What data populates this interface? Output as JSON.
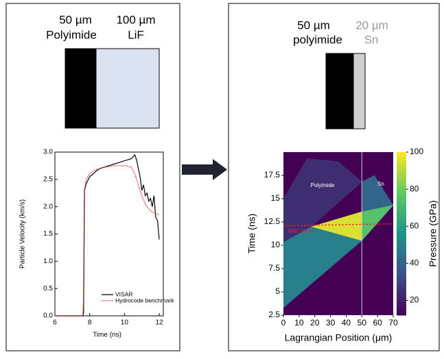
{
  "samples": [
    {
      "layers": [
        {
          "thickness": "50 µm",
          "material": "Polyimide"
        },
        {
          "thickness": "100 µm",
          "material": "LiF"
        }
      ]
    },
    {
      "layers": [
        {
          "thickness": "50 µm",
          "material": "polyimide"
        },
        {
          "thickness": "20 µm",
          "material": "Sn"
        }
      ]
    }
  ],
  "chart_data": [
    {
      "type": "line",
      "xlabel": "Time (ns)",
      "ylabel": "Particle Velocity (km/s)",
      "x": [
        6,
        7.6,
        7.65,
        7.7,
        7.8,
        8,
        8.2,
        8.4,
        8.6,
        8.8,
        9,
        9.2,
        9.4,
        9.6,
        9.8,
        10,
        10.2,
        10.4,
        10.6,
        10.7,
        10.8,
        10.9,
        11,
        11.1,
        11.2,
        11.3,
        11.4,
        11.5,
        11.6,
        11.7,
        11.8,
        11.9,
        12
      ],
      "series": [
        {
          "name": "VISAR",
          "color": "#000000",
          "style": "solid",
          "values": [
            0,
            0,
            0.05,
            2.3,
            2.42,
            2.55,
            2.6,
            2.66,
            2.7,
            2.72,
            2.74,
            2.76,
            2.78,
            2.8,
            2.82,
            2.84,
            2.86,
            2.88,
            2.95,
            2.85,
            2.7,
            2.55,
            2.3,
            2.4,
            2.2,
            2.25,
            2.1,
            2.15,
            2.0,
            2.2,
            1.8,
            1.75,
            1.4
          ]
        },
        {
          "name": "Hydrocode benchmark",
          "color": "#e0201b",
          "style": "dotted",
          "values": [
            0,
            0,
            0.3,
            2.3,
            2.5,
            2.6,
            2.65,
            2.68,
            2.7,
            2.72,
            2.73,
            2.74,
            2.75,
            2.75,
            2.75,
            2.75,
            2.74,
            2.72,
            2.6,
            2.5,
            2.4,
            2.3,
            2.2,
            2.12,
            2.05,
            2.0,
            1.96,
            1.93,
            1.9,
            1.88,
            1.87,
            1.86,
            1.85
          ]
        }
      ],
      "xlim": [
        6,
        12
      ],
      "xticks": [
        6,
        8,
        10,
        12
      ],
      "ylim": [
        0,
        3
      ],
      "yticks": [
        {
          "value": 0,
          "label": "0.0"
        },
        {
          "value": 0.5,
          "label": "0.5"
        },
        {
          "value": 1,
          "label": "1.0"
        },
        {
          "value": 1.5,
          "label": "1.5"
        },
        {
          "value": 2,
          "label": "2.0"
        },
        {
          "value": 2.5,
          "label": "2.5"
        },
        {
          "value": 3,
          "label": "3.0"
        }
      ],
      "legend": "lower right"
    },
    {
      "type": "heatmap",
      "xlabel": "Lagrangian Position (μm)",
      "ylabel": "Time (ns)",
      "colorbar_label": "Pressure (GPa)",
      "xlim": [
        0,
        70
      ],
      "xticks": [
        0,
        10,
        20,
        30,
        40,
        50,
        60,
        70
      ],
      "ylim": [
        2.5,
        20
      ],
      "yticks": [
        2.5,
        5,
        7.5,
        10,
        12.5,
        15,
        17.5
      ],
      "clim": [
        12,
        100
      ],
      "cticks": [
        20,
        40,
        60,
        80,
        100
      ],
      "regions": [
        {
          "pressure": 12,
          "points": [
            [
              0,
              2.5
            ],
            [
              70,
              2.5
            ],
            [
              70,
              20
            ],
            [
              0,
              20
            ]
          ]
        },
        {
          "pressure": 24,
          "points": [
            [
              0,
              10.3
            ],
            [
              18,
              12
            ],
            [
              50,
              16.8
            ],
            [
              35,
              19
            ],
            [
              15,
              19.3
            ],
            [
              0,
              15
            ]
          ]
        },
        {
          "pressure": 50,
          "points": [
            [
              0,
              3.3
            ],
            [
              0,
              10.3
            ],
            [
              18,
              12
            ],
            [
              50,
              10.5
            ]
          ]
        },
        {
          "pressure": 40,
          "points": [
            [
              50,
              13.6
            ],
            [
              70,
              14.3
            ],
            [
              58,
              17.5
            ],
            [
              50,
              16.8
            ]
          ]
        },
        {
          "pressure": 95,
          "points": [
            [
              18,
              12
            ],
            [
              50,
              13.6
            ],
            [
              50,
              10.5
            ]
          ]
        },
        {
          "pressure": 75,
          "points": [
            [
              50,
              10.5
            ],
            [
              50,
              13.6
            ],
            [
              70,
              14.3
            ]
          ]
        }
      ],
      "layer_boundary": 50,
      "annotations": [
        "Polyimide",
        "Sn"
      ],
      "probe": {
        "name": "XFEL probe",
        "color": "#ff2020",
        "x": [
          0,
          70
        ],
        "y": [
          12.1,
          12.3
        ]
      }
    }
  ]
}
